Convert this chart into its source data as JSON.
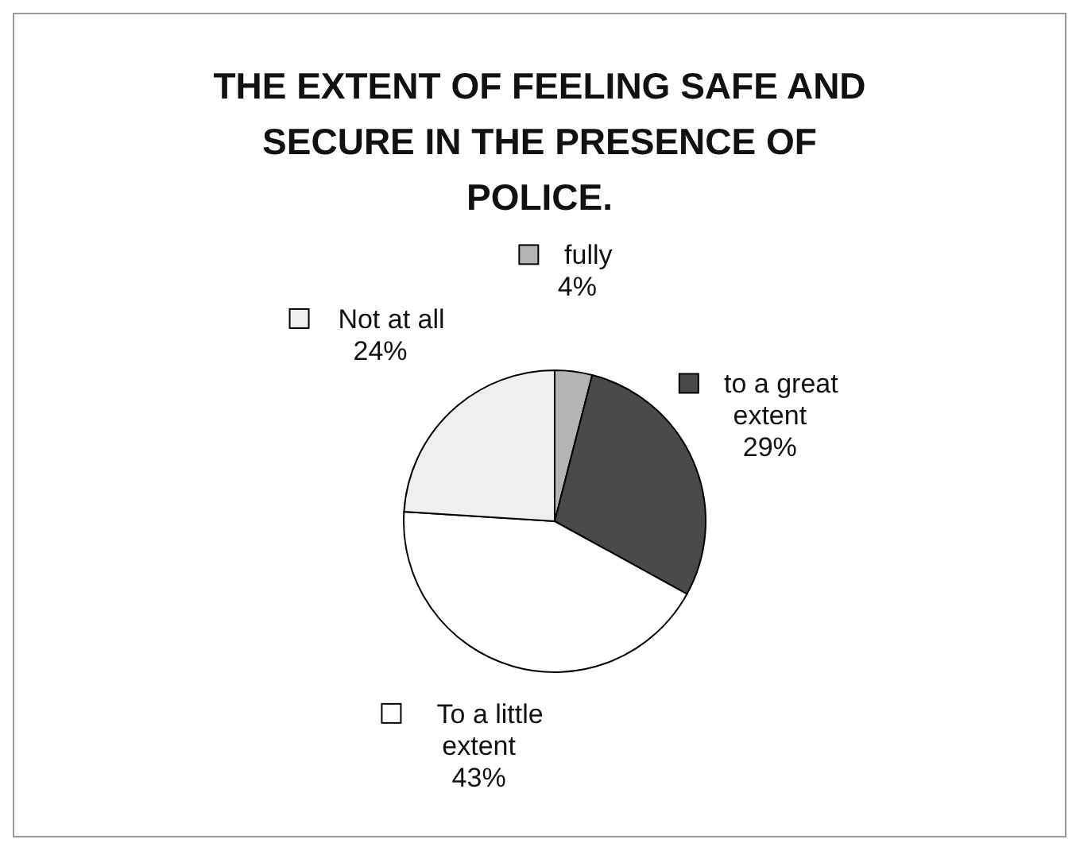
{
  "chart_data": {
    "type": "pie",
    "title": "THE EXTENT OF FEELING SAFE AND SECURE IN THE PRESENCE OF POLICE.",
    "categories": [
      "fully",
      "to a great extent",
      "To a little extent",
      "Not at all"
    ],
    "values": [
      4,
      29,
      43,
      24
    ],
    "value_labels": [
      "4%",
      "29%",
      "43%",
      "24%"
    ],
    "colors": [
      "#b4b4b4",
      "#4a4a4a",
      "#ffffff",
      "#efefef"
    ],
    "legend": true
  }
}
